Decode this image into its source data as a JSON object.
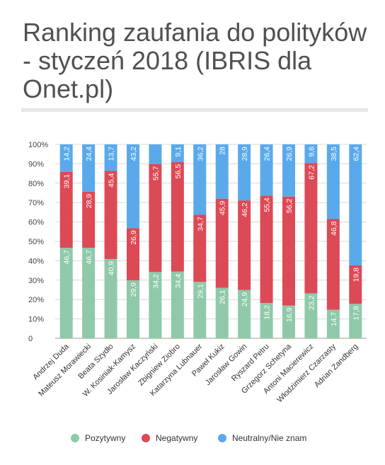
{
  "title": "Ranking zaufania do polityków - styczeń 2018 (IBRIS dla Onet.pl)",
  "colors": {
    "positive": "#8fc9a9",
    "negative": "#dc4a55",
    "neutral": "#5aaaeb"
  },
  "chart_data": {
    "type": "bar",
    "stacked": true,
    "title": "Ranking zaufania do polityków - styczeń 2018 (IBRIS dla Onet.pl)",
    "categories": [
      "Andrzej Duda",
      "Mateusz Morawiecki",
      "Beata Szydło",
      "W. Kosiniak-Kamysz",
      "Jarosław Kaczyński",
      "Zbigniew Ziobro",
      "Katarzyna Lubnauer",
      "Paweł Kukiz",
      "Jarosław Gowin",
      "Ryszard Petru",
      "Grzegorz Schetyna",
      "Antoni Macierewicz",
      "Włodzimierz Czarzasty",
      "Adrian Zandberg"
    ],
    "series": [
      {
        "name": "Pozytywny",
        "color": "#8fc9a9",
        "values": [
          46.7,
          46.7,
          40.9,
          29.9,
          34.2,
          34.4,
          29.1,
          26.1,
          24.9,
          18.2,
          16.9,
          23.2,
          14.7,
          17.8
        ],
        "labels": [
          "46,7",
          "46,7",
          "40,9",
          "29,9",
          "34,2",
          "34,4",
          "29,1",
          "26,1",
          "24,9",
          "18,2",
          "16,9",
          "23,2",
          "14,7",
          "17,8"
        ]
      },
      {
        "name": "Negatywny",
        "color": "#dc4a55",
        "values": [
          39.1,
          28.9,
          45.4,
          26.9,
          55.7,
          56.5,
          34.7,
          45.9,
          46.2,
          55.4,
          56.2,
          67.2,
          46.8,
          19.8
        ],
        "labels": [
          "39,1",
          "28,9",
          "45,4",
          "26,9",
          "55,7",
          "56,5",
          "34,7",
          "45,9",
          "46,2",
          "55,4",
          "56,2",
          "67,2",
          "46,8",
          "19,8"
        ]
      },
      {
        "name": "Neutralny/Nie znam",
        "color": "#5aaaeb",
        "values": [
          14.2,
          24.4,
          13.7,
          43.2,
          10.1,
          9.1,
          36.2,
          28,
          28.9,
          26.4,
          26.9,
          9.6,
          38.5,
          62.4
        ],
        "labels": [
          "14,2",
          "24,4",
          "13,7",
          "43,2",
          "",
          "9,1",
          "36,2",
          "28",
          "28,9",
          "26,4",
          "26,9",
          "9,6",
          "38,5",
          "62,4"
        ]
      }
    ],
    "ylim": [
      0,
      100
    ],
    "yticks": [
      "0",
      "10%",
      "20%",
      "30%",
      "40%",
      "50%",
      "60%",
      "70%",
      "80%",
      "90%",
      "100%"
    ],
    "grid": true,
    "legend_position": "bottom"
  }
}
